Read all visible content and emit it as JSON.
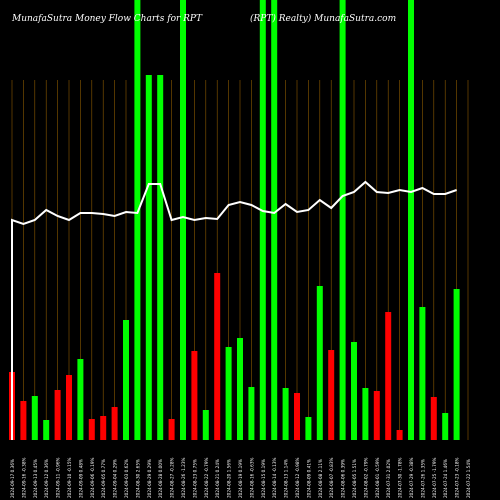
{
  "header": {
    "left": "MunafaSutra  Money Flow  Charts for RPT",
    "right": "(RPT) Realty) MunafaSutra.com"
  },
  "colors": {
    "background": "#000000",
    "up": "#00ff00",
    "down": "#ff0000",
    "line": "#ffffff",
    "grid": "#8b5a00",
    "label": "#ffffff"
  },
  "chart_data": {
    "type": "bar",
    "title": "MunafaSutra  Money Flow  Charts for RPT",
    "subtitle": "(RPT) Realty) MunafaSutra.com",
    "categories": [
      "2024-09-17 0.36%",
      "2024-09-16 -0.38%",
      "2024-09-13 0.45%",
      "2024-09-12 0.36%",
      "2024-09-11 -0.96%",
      "2024-09-10 -0.15%",
      "2024-09-09 0.48%",
      "2024-09-06 -0.19%",
      "2024-09-05 0.77%",
      "2024-09-04 0.29%",
      "2024-09-03 0.62%",
      "2024-08-30 2.65%",
      "2024-08-29 0.29%",
      "2024-08-28 0.00%",
      "2024-08-27 -0.28%",
      "2024-08-26 -1.23%",
      "2024-08-23 0.75%",
      "2024-08-22 -0.79%",
      "2024-08-21 0.24%",
      "2024-08-20 1.56%",
      "2024-08-19 0.19%",
      "2024-08-16 -0.63%",
      "2024-08-15 0.19%",
      "2024-08-14 -0.13%",
      "2024-08-13 1.14%",
      "2024-08-12 -0.98%",
      "2024-08-09 0.41%",
      "2024-08-08 2.11%",
      "2024-08-07 -0.83%",
      "2024-08-06 0.39%",
      "2024-08-05 1.51%",
      "2024-08-02 -0.79%",
      "2024-08-01 -0.59%",
      "2024-07-31 2.02%",
      "2024-07-30 -1.78%",
      "2024-07-29 -0.38%",
      "2024-07-26 1.35%",
      "2024-07-25 -1.79%",
      "2024-07-24 1.46%",
      "2024-07-23 -0.18%",
      "2024-07-22 1.54%"
    ],
    "bars": [
      {
        "value": 68,
        "dir": "down",
        "gridline": false
      },
      {
        "value": 39,
        "dir": "down",
        "gridline": false
      },
      {
        "value": 44,
        "dir": "up",
        "gridline": false
      },
      {
        "value": 20,
        "dir": "up",
        "gridline": false
      },
      {
        "value": 50,
        "dir": "down",
        "gridline": false
      },
      {
        "value": 65,
        "dir": "down",
        "gridline": false
      },
      {
        "value": 81,
        "dir": "up",
        "gridline": false
      },
      {
        "value": 21,
        "dir": "down",
        "gridline": false
      },
      {
        "value": 24,
        "dir": "down",
        "gridline": false
      },
      {
        "value": 33,
        "dir": "down",
        "gridline": false
      },
      {
        "value": 120,
        "dir": "up",
        "gridline": false
      },
      {
        "value": 440,
        "dir": "up",
        "gridline": false
      },
      {
        "value": 365,
        "dir": "up",
        "gridline": false
      },
      {
        "value": 365,
        "dir": "up",
        "gridline": false
      },
      {
        "value": 21,
        "dir": "down",
        "gridline": false
      },
      {
        "value": 440,
        "dir": "up",
        "gridline": false
      },
      {
        "value": 89,
        "dir": "down",
        "gridline": false
      },
      {
        "value": 30,
        "dir": "up",
        "gridline": false
      },
      {
        "value": 167,
        "dir": "down",
        "gridline": false
      },
      {
        "value": 93,
        "dir": "up",
        "gridline": false
      },
      {
        "value": 102,
        "dir": "up",
        "gridline": false
      },
      {
        "value": 53,
        "dir": "up",
        "gridline": false
      },
      {
        "value": 440,
        "dir": "up",
        "gridline": false
      },
      {
        "value": 440,
        "dir": "up",
        "gridline": false
      },
      {
        "value": 52,
        "dir": "up",
        "gridline": false
      },
      {
        "value": 47,
        "dir": "down",
        "gridline": false
      },
      {
        "value": 23,
        "dir": "up",
        "gridline": false
      },
      {
        "value": 154,
        "dir": "up",
        "gridline": false
      },
      {
        "value": 90,
        "dir": "down",
        "gridline": false
      },
      {
        "value": 440,
        "dir": "up",
        "gridline": false
      },
      {
        "value": 98,
        "dir": "up",
        "gridline": false
      },
      {
        "value": 52,
        "dir": "up",
        "gridline": false
      },
      {
        "value": 49,
        "dir": "down",
        "gridline": false
      },
      {
        "value": 128,
        "dir": "down",
        "gridline": false
      },
      {
        "value": 10,
        "dir": "down",
        "gridline": false
      },
      {
        "value": 440,
        "dir": "up",
        "gridline": false
      },
      {
        "value": 133,
        "dir": "up",
        "gridline": false
      },
      {
        "value": 43,
        "dir": "down",
        "gridline": false
      },
      {
        "value": 27,
        "dir": "up",
        "gridline": false
      },
      {
        "value": 151,
        "dir": "up",
        "gridline": false
      },
      {
        "value": 0,
        "dir": "up",
        "gridline": true
      }
    ],
    "line": [
      220,
      224,
      220,
      210,
      216,
      220,
      213,
      213,
      214,
      216,
      212,
      213,
      184,
      184,
      220,
      217,
      220,
      218,
      219,
      205,
      202,
      205,
      211,
      213,
      204,
      212,
      210,
      200,
      208,
      196,
      192,
      182,
      192,
      193,
      190,
      192,
      188,
      194,
      194,
      190
    ],
    "ylim": [
      0,
      440
    ],
    "grid": true
  }
}
